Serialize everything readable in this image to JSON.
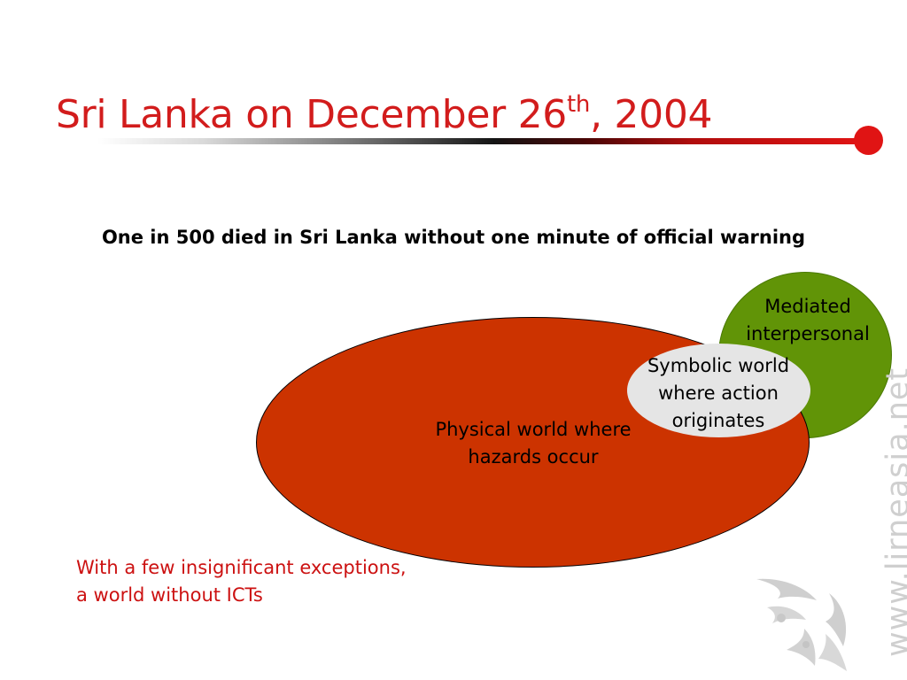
{
  "slide": {
    "title_main": "Sri Lanka on December 26",
    "title_sup": "th",
    "title_tail": ", 2004",
    "subtitle": "One in 500 died in Sri Lanka without one minute of official warning"
  },
  "diagram": {
    "mediated_line1": "Mediated",
    "mediated_line2": "interpersonal",
    "symbolic_line1": "Symbolic world",
    "symbolic_line2": "where action",
    "symbolic_line3": "originates",
    "physical_line1": "Physical world where",
    "physical_line2": "hazards occur"
  },
  "note": {
    "line1": "With a few insignificant exceptions,",
    "line2": "a world without ICTs"
  },
  "watermark": {
    "url": "www.lirneasia.net"
  },
  "colors": {
    "title_red": "#d21c1c",
    "green_circle": "#619407",
    "red_ellipse": "#cc3300",
    "gray_ellipse": "#e5e5e5",
    "note_red": "#cc1111"
  },
  "icons": {
    "logo": "lirneasia-logo-icon",
    "title_dot": "red-dot-icon"
  }
}
